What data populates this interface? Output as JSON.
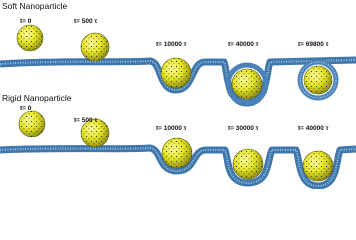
{
  "panels": [
    {
      "title": "Soft Nanoparticle",
      "labels": [
        "t= 0",
        "t= 500 τ",
        "t= 10000 τ",
        "t= 40000 τ",
        "t= 69800 τ"
      ]
    },
    {
      "title": "Rigid Nanoparticle",
      "labels": [
        "t= 0",
        "t= 500 τ",
        "t= 10000 τ",
        "t= 30000 τ",
        "t= 40000 τ"
      ]
    }
  ]
}
